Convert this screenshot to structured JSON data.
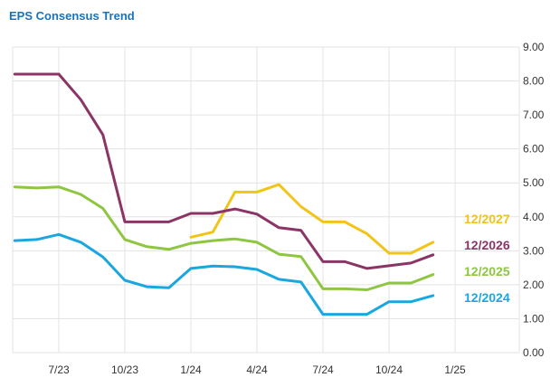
{
  "chart_data": {
    "type": "line",
    "title": "EPS Consensus Trend",
    "xlabel": "",
    "ylabel": "",
    "ylim": [
      0,
      9
    ],
    "y_ticks": [
      "0.00",
      "1.00",
      "2.00",
      "3.00",
      "4.00",
      "5.00",
      "6.00",
      "7.00",
      "8.00",
      "9.00"
    ],
    "x_ticks": [
      "7/23",
      "10/23",
      "1/24",
      "4/24",
      "7/24",
      "10/24",
      "1/25"
    ],
    "grid": true,
    "legend": "inline-right",
    "series": [
      {
        "name": "12/2027",
        "color": "#f2c318",
        "points": [
          [
            "2024-01",
            3.4
          ],
          [
            "2024-02",
            3.55
          ],
          [
            "2024-03",
            4.73
          ],
          [
            "2024-04",
            4.73
          ],
          [
            "2024-05",
            4.95
          ],
          [
            "2024-06",
            4.3
          ],
          [
            "2024-07",
            3.85
          ],
          [
            "2024-08",
            3.85
          ],
          [
            "2024-09",
            3.5
          ],
          [
            "2024-10",
            2.93
          ],
          [
            "2024-11",
            2.93
          ],
          [
            "2024-12",
            3.25
          ]
        ]
      },
      {
        "name": "12/2026",
        "color": "#8b3566",
        "points": [
          [
            "2023-05",
            8.2
          ],
          [
            "2023-06",
            8.2
          ],
          [
            "2023-07",
            8.2
          ],
          [
            "2023-08",
            7.45
          ],
          [
            "2023-09",
            6.42
          ],
          [
            "2023-10",
            3.85
          ],
          [
            "2023-11",
            3.85
          ],
          [
            "2023-12",
            3.85
          ],
          [
            "2024-01",
            4.1
          ],
          [
            "2024-02",
            4.1
          ],
          [
            "2024-03",
            4.23
          ],
          [
            "2024-04",
            4.08
          ],
          [
            "2024-05",
            3.68
          ],
          [
            "2024-06",
            3.6
          ],
          [
            "2024-07",
            2.68
          ],
          [
            "2024-08",
            2.68
          ],
          [
            "2024-09",
            2.48
          ],
          [
            "2024-10",
            2.56
          ],
          [
            "2024-11",
            2.64
          ],
          [
            "2024-12",
            2.88
          ]
        ]
      },
      {
        "name": "12/2025",
        "color": "#8ec641",
        "points": [
          [
            "2023-05",
            4.88
          ],
          [
            "2023-06",
            4.85
          ],
          [
            "2023-07",
            4.88
          ],
          [
            "2023-08",
            4.66
          ],
          [
            "2023-09",
            4.25
          ],
          [
            "2023-10",
            3.33
          ],
          [
            "2023-11",
            3.12
          ],
          [
            "2023-12",
            3.04
          ],
          [
            "2024-01",
            3.22
          ],
          [
            "2024-02",
            3.3
          ],
          [
            "2024-03",
            3.35
          ],
          [
            "2024-04",
            3.25
          ],
          [
            "2024-05",
            2.9
          ],
          [
            "2024-06",
            2.83
          ],
          [
            "2024-07",
            1.88
          ],
          [
            "2024-08",
            1.88
          ],
          [
            "2024-09",
            1.85
          ],
          [
            "2024-10",
            2.05
          ],
          [
            "2024-11",
            2.05
          ],
          [
            "2024-12",
            2.3
          ]
        ]
      },
      {
        "name": "12/2024",
        "color": "#1aa7e0",
        "points": [
          [
            "2023-05",
            3.3
          ],
          [
            "2023-06",
            3.33
          ],
          [
            "2023-07",
            3.48
          ],
          [
            "2023-08",
            3.25
          ],
          [
            "2023-09",
            2.82
          ],
          [
            "2023-10",
            2.13
          ],
          [
            "2023-11",
            1.94
          ],
          [
            "2023-12",
            1.91
          ],
          [
            "2024-01",
            2.48
          ],
          [
            "2024-02",
            2.55
          ],
          [
            "2024-03",
            2.53
          ],
          [
            "2024-04",
            2.45
          ],
          [
            "2024-05",
            2.16
          ],
          [
            "2024-06",
            2.08
          ],
          [
            "2024-07",
            1.13
          ],
          [
            "2024-08",
            1.13
          ],
          [
            "2024-09",
            1.13
          ],
          [
            "2024-10",
            1.5
          ],
          [
            "2024-11",
            1.5
          ],
          [
            "2024-12",
            1.68
          ]
        ]
      }
    ]
  }
}
